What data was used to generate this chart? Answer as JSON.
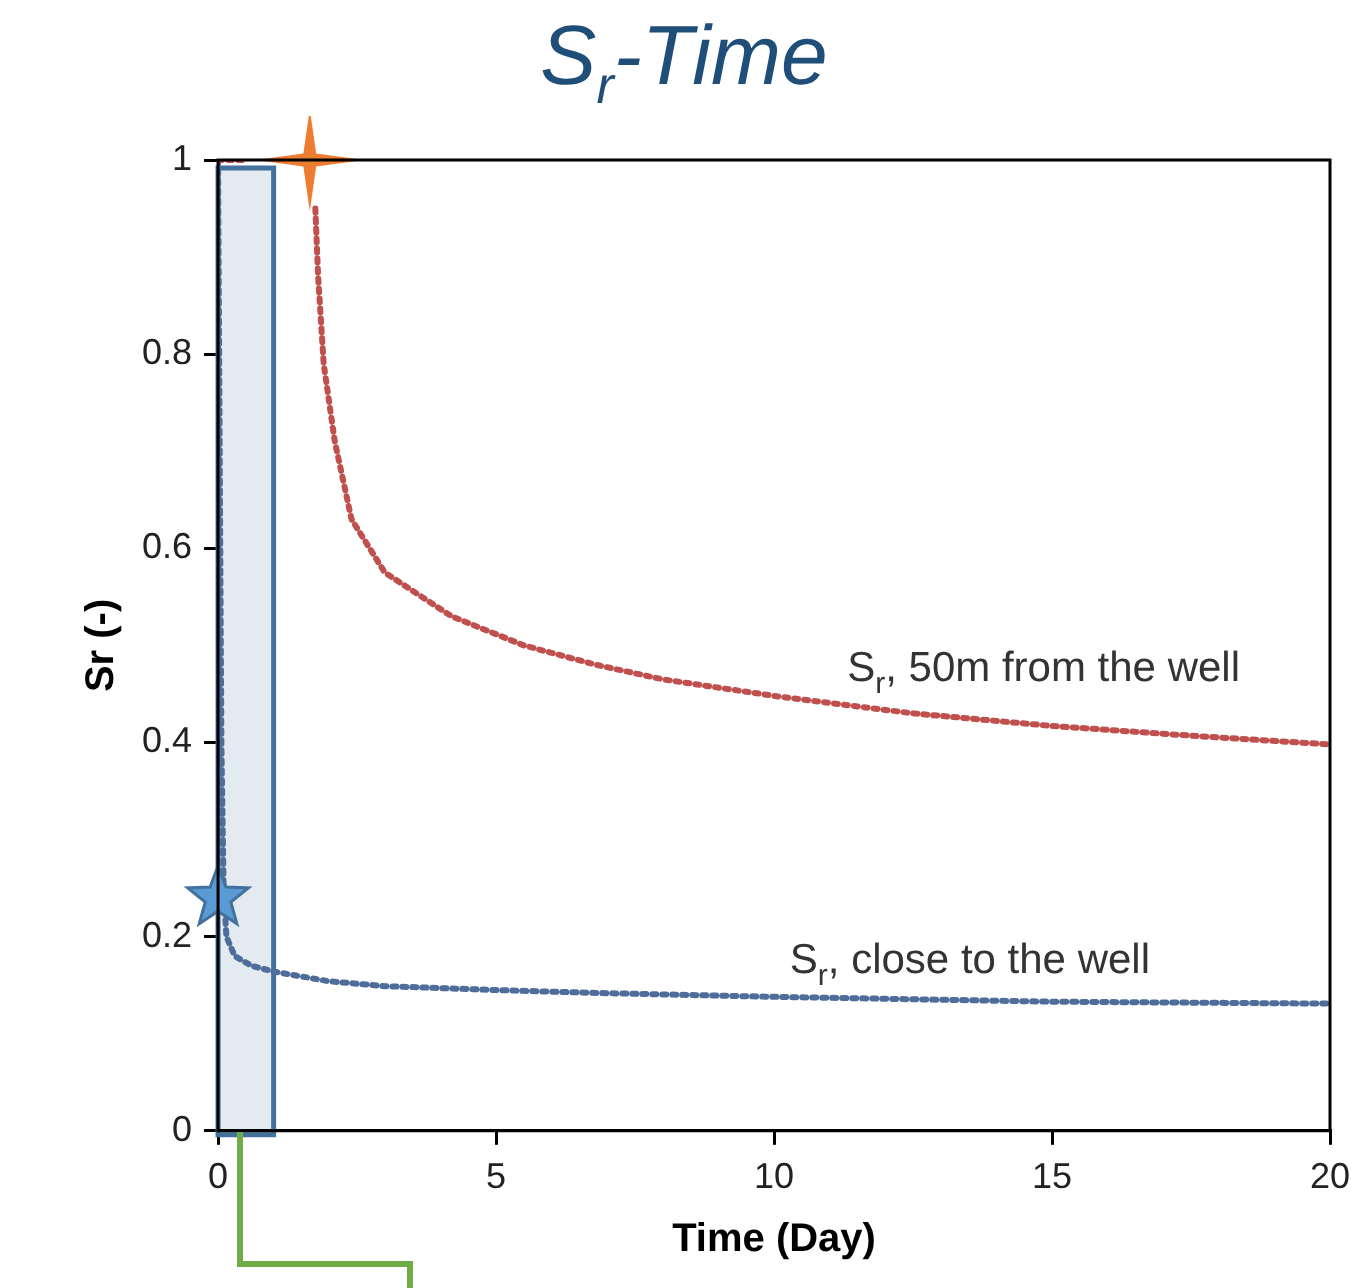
{
  "chart_data": {
    "type": "line",
    "title": "S$_{r}$-Time",
    "xlabel": "Time (Day)",
    "ylabel": "Sr (-)",
    "xlim": [
      0,
      20
    ],
    "xticks": [
      0,
      5,
      10,
      15,
      20
    ],
    "ylim": [
      0,
      1
    ],
    "yticks": [
      0,
      0.2,
      0.4,
      0.6,
      0.8,
      1
    ],
    "grid": false,
    "legend": false,
    "marker": "none",
    "line_style": "dotted",
    "bands": [
      {
        "axis": "x",
        "from": 0,
        "to": 1,
        "color": "#41719c"
      }
    ],
    "series": [
      {
        "type": "scatter",
        "marker": "cross",
        "color": "#ed7d31",
        "x": [
          1.65
        ],
        "values": [
          1
        ]
      },
      {
        "type": "scatter",
        "marker": "star",
        "color": "#5b9bd5",
        "x": [
          0
        ],
        "values": [
          0.24
        ]
      },
      {
        "name": "S$_{r}$, 50m from the well",
        "color": "#c0504d",
        "x": [
          0,
          0.5,
          1,
          1.5,
          1.7,
          1.75,
          1.8,
          1.9,
          2.1,
          2.4,
          3,
          4.2,
          5.5,
          6.8,
          8,
          10,
          12.5,
          15,
          17.5,
          20
        ],
        "values": [
          1,
          1,
          null,
          null,
          null,
          0.95,
          0.88,
          0.79,
          0.71,
          0.63,
          0.575,
          0.53,
          0.5,
          0.48,
          0.465,
          0.448,
          0.43,
          0.417,
          0.407,
          0.398
        ]
      },
      {
        "name": "S$_{r}$, close to the well",
        "color": "#4f6d9a",
        "x": [
          0,
          0.03,
          0.06,
          0.1,
          0.15,
          0.3,
          0.6,
          1,
          2,
          3,
          5,
          6.8,
          10,
          15,
          20
        ],
        "values": [
          1,
          0.7,
          0.4,
          0.25,
          0.2,
          0.18,
          0.17,
          0.164,
          0.154,
          0.149,
          0.145,
          0.142,
          0.138,
          0.133,
          0.131
        ]
      }
    ]
  }
}
